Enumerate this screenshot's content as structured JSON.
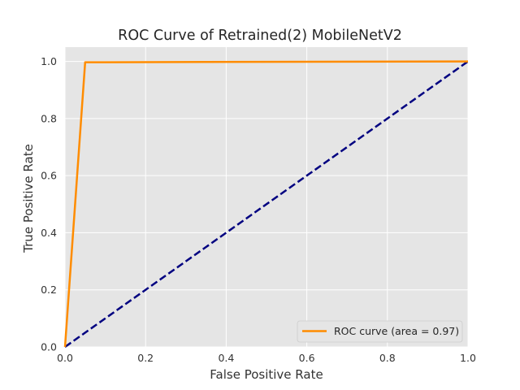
{
  "chart_data": {
    "type": "line",
    "title": "ROC Curve of Retrained(2) MobileNetV2",
    "xlabel": "False Positive Rate",
    "ylabel": "True Positive Rate",
    "xlim": [
      0.0,
      1.0
    ],
    "ylim": [
      0.0,
      1.05
    ],
    "xticks": [
      "0.0",
      "0.2",
      "0.4",
      "0.6",
      "0.8",
      "1.0"
    ],
    "yticks": [
      "0.0",
      "0.2",
      "0.4",
      "0.6",
      "0.8",
      "1.0"
    ],
    "grid": true,
    "legend_position": "lower-right",
    "series": [
      {
        "name": "ROC curve (area = 0.97)",
        "color": "#ff8c00",
        "style": "solid",
        "x": [
          0.0,
          0.05,
          1.0
        ],
        "y": [
          0.0,
          0.997,
          1.0
        ]
      },
      {
        "color": "#000080",
        "style": "dashed",
        "x": [
          0.0,
          1.0
        ],
        "y": [
          0.0,
          1.0
        ]
      }
    ]
  }
}
